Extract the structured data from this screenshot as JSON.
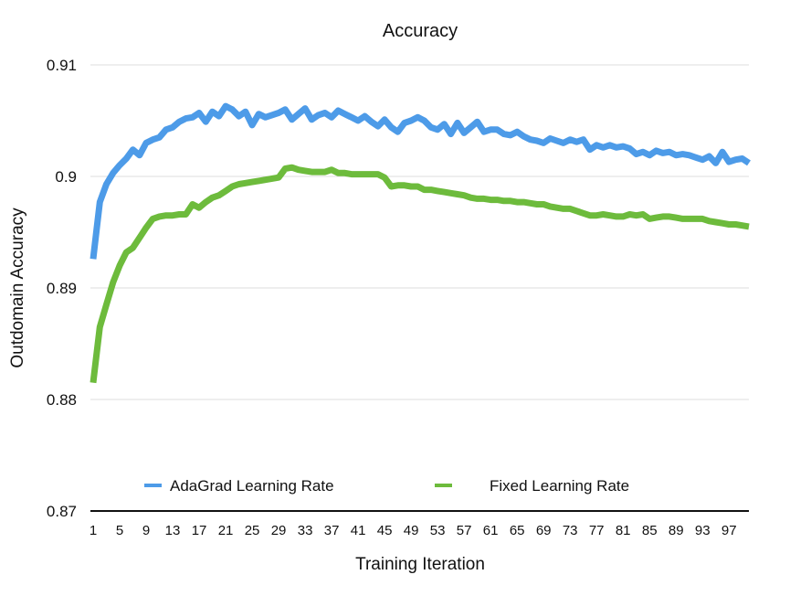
{
  "chart_data": {
    "type": "line",
    "title": "Accuracy",
    "xlabel": "Training Iteration",
    "ylabel": "Outdomain Accuracy",
    "ylim": [
      0.87,
      0.91
    ],
    "xlim": [
      1,
      100
    ],
    "yticks": [
      "0.87",
      "0.88",
      "0.89",
      "0.9",
      "0.91"
    ],
    "ytick_values": [
      0.87,
      0.88,
      0.89,
      0.9,
      0.91
    ],
    "xticks": [
      "1",
      "5",
      "9",
      "13",
      "17",
      "21",
      "25",
      "29",
      "33",
      "37",
      "41",
      "45",
      "49",
      "53",
      "57",
      "61",
      "65",
      "69",
      "73",
      "77",
      "81",
      "85",
      "89",
      "93",
      "97"
    ],
    "grid": true,
    "legend_position": "bottom",
    "series": [
      {
        "name": "AdaGrad Learning Rate",
        "color": "#4d9be8",
        "x": [
          1,
          2,
          3,
          4,
          5,
          6,
          7,
          8,
          9,
          10,
          11,
          12,
          13,
          14,
          15,
          16,
          17,
          18,
          19,
          20,
          21,
          22,
          23,
          24,
          25,
          26,
          27,
          28,
          29,
          30,
          31,
          32,
          33,
          34,
          35,
          36,
          37,
          38,
          39,
          40,
          41,
          42,
          43,
          44,
          45,
          46,
          47,
          48,
          49,
          50,
          51,
          52,
          53,
          54,
          55,
          56,
          57,
          58,
          59,
          60,
          61,
          62,
          63,
          64,
          65,
          66,
          67,
          68,
          69,
          70,
          71,
          72,
          73,
          74,
          75,
          76,
          77,
          78,
          79,
          80,
          81,
          82,
          83,
          84,
          85,
          86,
          87,
          88,
          89,
          90,
          91,
          92,
          93,
          94,
          95,
          96,
          97,
          98,
          99,
          100
        ],
        "values": [
          0.8926,
          0.8977,
          0.8993,
          0.9003,
          0.901,
          0.9016,
          0.9024,
          0.9019,
          0.903,
          0.9033,
          0.9035,
          0.9042,
          0.9044,
          0.9049,
          0.9052,
          0.9053,
          0.9057,
          0.9049,
          0.9058,
          0.9054,
          0.9063,
          0.906,
          0.9054,
          0.9058,
          0.9046,
          0.9056,
          0.9053,
          0.9055,
          0.9057,
          0.906,
          0.9051,
          0.9056,
          0.9061,
          0.9051,
          0.9055,
          0.9057,
          0.9053,
          0.9059,
          0.9056,
          0.9053,
          0.905,
          0.9054,
          0.9049,
          0.9045,
          0.9051,
          0.9044,
          0.904,
          0.9048,
          0.905,
          0.9053,
          0.905,
          0.9044,
          0.9042,
          0.9047,
          0.9038,
          0.9048,
          0.9039,
          0.9044,
          0.9049,
          0.904,
          0.9042,
          0.9042,
          0.9038,
          0.9037,
          0.904,
          0.9036,
          0.9033,
          0.9032,
          0.903,
          0.9034,
          0.9032,
          0.903,
          0.9033,
          0.9031,
          0.9033,
          0.9024,
          0.9028,
          0.9026,
          0.9028,
          0.9026,
          0.9027,
          0.9025,
          0.902,
          0.9022,
          0.9019,
          0.9023,
          0.9021,
          0.9022,
          0.9019,
          0.902,
          0.9019,
          0.9017,
          0.9015,
          0.9018,
          0.9012,
          0.9022,
          0.9013,
          0.9015,
          0.9016,
          0.9012
        ]
      },
      {
        "name": "Fixed Learning Rate",
        "color": "#6dbb3c",
        "x": [
          1,
          2,
          3,
          4,
          5,
          6,
          7,
          8,
          9,
          10,
          11,
          12,
          13,
          14,
          15,
          16,
          17,
          18,
          19,
          20,
          21,
          22,
          23,
          24,
          25,
          26,
          27,
          28,
          29,
          30,
          31,
          32,
          33,
          34,
          35,
          36,
          37,
          38,
          39,
          40,
          41,
          42,
          43,
          44,
          45,
          46,
          47,
          48,
          49,
          50,
          51,
          52,
          53,
          54,
          55,
          56,
          57,
          58,
          59,
          60,
          61,
          62,
          63,
          64,
          65,
          66,
          67,
          68,
          69,
          70,
          71,
          72,
          73,
          74,
          75,
          76,
          77,
          78,
          79,
          80,
          81,
          82,
          83,
          84,
          85,
          86,
          87,
          88,
          89,
          90,
          91,
          92,
          93,
          94,
          95,
          96,
          97,
          98,
          99,
          100
        ],
        "values": [
          0.8815,
          0.8865,
          0.8885,
          0.8905,
          0.892,
          0.8932,
          0.8936,
          0.8945,
          0.8954,
          0.8962,
          0.8964,
          0.8965,
          0.8965,
          0.8966,
          0.8966,
          0.8975,
          0.8972,
          0.8977,
          0.8981,
          0.8983,
          0.8987,
          0.8991,
          0.8993,
          0.8994,
          0.8995,
          0.8996,
          0.8997,
          0.8998,
          0.8999,
          0.9007,
          0.9008,
          0.9006,
          0.9005,
          0.9004,
          0.9004,
          0.9004,
          0.9006,
          0.9003,
          0.9003,
          0.9002,
          0.9002,
          0.9002,
          0.9002,
          0.9002,
          0.8999,
          0.8991,
          0.8992,
          0.8992,
          0.8991,
          0.8991,
          0.8988,
          0.8988,
          0.8987,
          0.8986,
          0.8985,
          0.8984,
          0.8983,
          0.8981,
          0.898,
          0.898,
          0.8979,
          0.8979,
          0.8978,
          0.8978,
          0.8977,
          0.8977,
          0.8976,
          0.8975,
          0.8975,
          0.8973,
          0.8972,
          0.8971,
          0.8971,
          0.8969,
          0.8967,
          0.8965,
          0.8965,
          0.8966,
          0.8965,
          0.8964,
          0.8964,
          0.8966,
          0.8965,
          0.8966,
          0.8962,
          0.8963,
          0.8964,
          0.8964,
          0.8963,
          0.8962,
          0.8962,
          0.8962,
          0.8962,
          0.896,
          0.8959,
          0.8958,
          0.8957,
          0.8957,
          0.8956,
          0.8955
        ]
      }
    ]
  }
}
